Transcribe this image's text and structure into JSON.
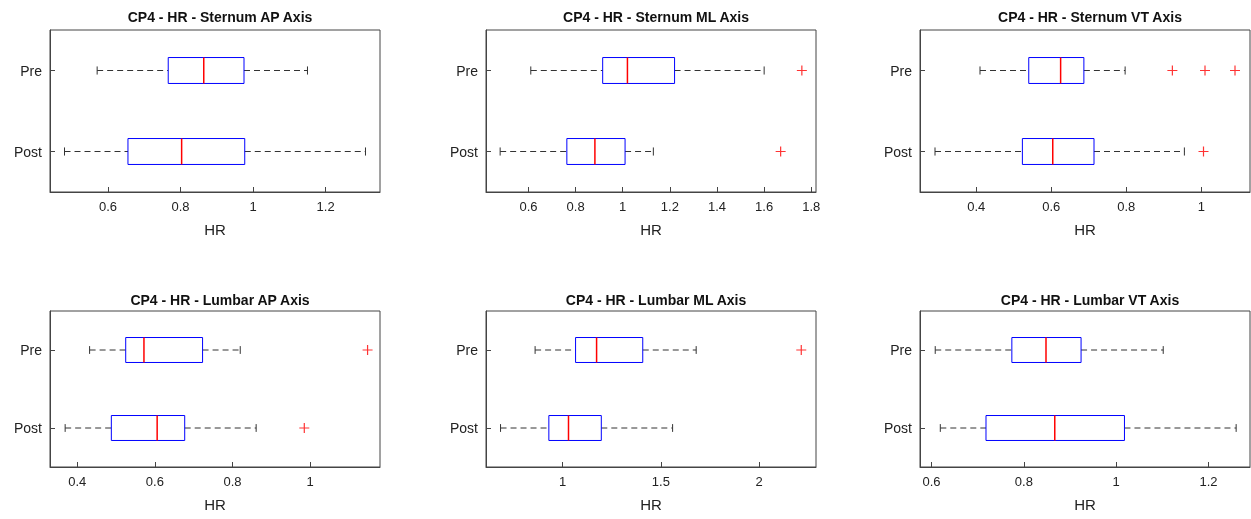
{
  "chart_data": [
    {
      "type": "box",
      "title": "CP4 - HR - Sternum AP Axis",
      "xlabel": "HR",
      "orientation": "horizontal",
      "categories": [
        "Pre",
        "Post"
      ],
      "boxes": [
        {
          "low": 0.57,
          "q1": 0.766,
          "median": 0.864,
          "q3": 0.975,
          "high": 1.15
        },
        {
          "low": 0.48,
          "q1": 0.655,
          "median": 0.803,
          "q3": 0.977,
          "high": 1.31
        }
      ],
      "xlim": [
        0.44,
        1.35
      ],
      "xticks": [
        0.6,
        0.8,
        1,
        1.2
      ]
    },
    {
      "type": "box",
      "title": "CP4 - HR - Sternum ML Axis",
      "xlabel": "HR",
      "orientation": "horizontal",
      "categories": [
        "Pre",
        "Post"
      ],
      "boxes": [
        {
          "low": 0.61,
          "q1": 0.915,
          "median": 1.02,
          "q3": 1.22,
          "high": 1.6,
          "outliers": [
            1.76
          ]
        },
        {
          "low": 0.48,
          "q1": 0.763,
          "median": 0.882,
          "q3": 1.01,
          "high": 1.13,
          "outliers": [
            1.67
          ]
        }
      ],
      "xlim": [
        0.42,
        1.82
      ],
      "xticks": [
        0.6,
        0.8,
        1,
        1.2,
        1.4,
        1.6,
        1.8
      ]
    },
    {
      "type": "box",
      "title": "CP4 - HR - Sternum VT Axis",
      "xlabel": "HR",
      "orientation": "horizontal",
      "categories": [
        "Pre",
        "Post"
      ],
      "boxes": [
        {
          "low": 0.41,
          "q1": 0.54,
          "median": 0.625,
          "q3": 0.687,
          "high": 0.797,
          "outliers": [
            0.923,
            1.01,
            1.09
          ]
        },
        {
          "low": 0.29,
          "q1": 0.523,
          "median": 0.604,
          "q3": 0.714,
          "high": 0.955,
          "outliers": [
            1.006
          ]
        }
      ],
      "xlim": [
        0.25,
        1.13
      ],
      "xticks": [
        0.4,
        0.6,
        0.8,
        1
      ]
    },
    {
      "type": "box",
      "title": "CP4 - HR - Lumbar AP Axis",
      "xlabel": "HR",
      "orientation": "horizontal",
      "categories": [
        "Pre",
        "Post"
      ],
      "boxes": [
        {
          "low": 0.432,
          "q1": 0.525,
          "median": 0.572,
          "q3": 0.723,
          "high": 0.82,
          "outliers": [
            1.148
          ]
        },
        {
          "low": 0.369,
          "q1": 0.488,
          "median": 0.606,
          "q3": 0.677,
          "high": 0.861,
          "outliers": [
            0.985
          ]
        }
      ],
      "xlim": [
        0.33,
        1.18
      ],
      "xticks": [
        0.4,
        0.6,
        0.8,
        1
      ]
    },
    {
      "type": "box",
      "title": "CP4 - HR - Lumbar ML Axis",
      "xlabel": "HR",
      "orientation": "horizontal",
      "categories": [
        "Pre",
        "Post"
      ],
      "boxes": [
        {
          "low": 0.86,
          "q1": 1.066,
          "median": 1.173,
          "q3": 1.408,
          "high": 1.68,
          "outliers": [
            2.215
          ]
        },
        {
          "low": 0.684,
          "q1": 0.93,
          "median": 1.03,
          "q3": 1.197,
          "high": 1.56
        }
      ],
      "xlim": [
        0.61,
        2.29
      ],
      "xticks": [
        1,
        1.5,
        2
      ]
    },
    {
      "type": "box",
      "title": "CP4 - HR - Lumbar VT Axis",
      "xlabel": "HR",
      "orientation": "horizontal",
      "categories": [
        "Pre",
        "Post"
      ],
      "boxes": [
        {
          "low": 0.608,
          "q1": 0.774,
          "median": 0.848,
          "q3": 0.924,
          "high": 1.102
        },
        {
          "low": 0.619,
          "q1": 0.718,
          "median": 0.867,
          "q3": 1.018,
          "high": 1.26
        }
      ],
      "xlim": [
        0.575,
        1.29
      ],
      "xticks": [
        0.6,
        0.8,
        1,
        1.2
      ]
    }
  ]
}
